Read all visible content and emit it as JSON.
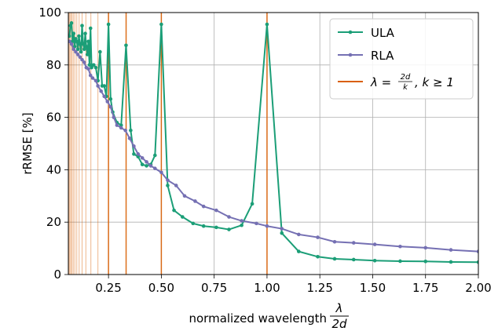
{
  "chart_data": {
    "type": "line",
    "xlabel": "normalized wavelength",
    "xlabel_fraction": {
      "numerator": "λ",
      "denominator": "2d"
    },
    "ylabel": "rRMSE [%]",
    "xlim": [
      0.06,
      2.0
    ],
    "ylim": [
      0,
      100
    ],
    "xticks": [
      "0.25",
      "0.50",
      "0.75",
      "1.00",
      "1.25",
      "1.50",
      "1.75",
      "2.00"
    ],
    "yticks": [
      "0",
      "20",
      "40",
      "60",
      "80",
      "100"
    ],
    "grid": true,
    "legend_position": "top-right",
    "legend": {
      "ula": "ULA",
      "rla": "RLA",
      "vline_prefix": "λ = ",
      "vline_frac_num": "2d",
      "vline_frac_den": "k",
      "vline_suffix": ", k ≥ 1"
    },
    "series": [
      {
        "name": "ULA",
        "color": "#1b9e77",
        "points": [
          [
            0.065,
            91
          ],
          [
            0.07,
            95
          ],
          [
            0.075,
            96
          ],
          [
            0.08,
            89
          ],
          [
            0.085,
            92
          ],
          [
            0.09,
            87
          ],
          [
            0.095,
            90
          ],
          [
            0.1,
            89
          ],
          [
            0.105,
            86
          ],
          [
            0.11,
            91
          ],
          [
            0.115,
            88
          ],
          [
            0.12,
            85
          ],
          [
            0.125,
            95
          ],
          [
            0.13,
            88
          ],
          [
            0.135,
            86
          ],
          [
            0.14,
            92
          ],
          [
            0.145,
            87
          ],
          [
            0.15,
            84
          ],
          [
            0.155,
            89
          ],
          [
            0.16,
            80
          ],
          [
            0.165,
            94
          ],
          [
            0.17,
            79
          ],
          [
            0.18,
            80
          ],
          [
            0.19,
            79
          ],
          [
            0.2,
            74
          ],
          [
            0.21,
            85
          ],
          [
            0.22,
            72
          ],
          [
            0.23,
            72
          ],
          [
            0.24,
            68
          ],
          [
            0.25,
            95.5
          ],
          [
            0.26,
            67
          ],
          [
            0.27,
            62
          ],
          [
            0.29,
            58
          ],
          [
            0.31,
            57
          ],
          [
            0.333,
            87.5
          ],
          [
            0.355,
            55
          ],
          [
            0.37,
            46
          ],
          [
            0.39,
            45
          ],
          [
            0.41,
            42
          ],
          [
            0.43,
            41.5
          ],
          [
            0.45,
            42
          ],
          [
            0.47,
            45.5
          ],
          [
            0.5,
            95.5
          ],
          [
            0.53,
            34
          ],
          [
            0.56,
            24.5
          ],
          [
            0.6,
            22
          ],
          [
            0.65,
            19.5
          ],
          [
            0.7,
            18.5
          ],
          [
            0.76,
            18
          ],
          [
            0.82,
            17.2
          ],
          [
            0.88,
            18.8
          ],
          [
            0.93,
            27
          ],
          [
            1.0,
            95.5
          ],
          [
            1.07,
            15.8
          ],
          [
            1.15,
            8.8
          ],
          [
            1.24,
            6.8
          ],
          [
            1.32,
            6.0
          ],
          [
            1.41,
            5.7
          ],
          [
            1.51,
            5.3
          ],
          [
            1.63,
            5.1
          ],
          [
            1.75,
            5.0
          ],
          [
            1.87,
            4.8
          ],
          [
            2.0,
            4.7
          ]
        ]
      },
      {
        "name": "RLA",
        "color": "#7570b3",
        "points": [
          [
            0.065,
            89
          ],
          [
            0.075,
            88
          ],
          [
            0.085,
            86
          ],
          [
            0.095,
            85
          ],
          [
            0.105,
            84
          ],
          [
            0.115,
            83
          ],
          [
            0.125,
            82
          ],
          [
            0.135,
            81
          ],
          [
            0.145,
            79
          ],
          [
            0.155,
            78.5
          ],
          [
            0.165,
            76
          ],
          [
            0.175,
            75
          ],
          [
            0.19,
            74
          ],
          [
            0.2,
            72
          ],
          [
            0.215,
            70
          ],
          [
            0.23,
            68
          ],
          [
            0.245,
            66
          ],
          [
            0.26,
            64
          ],
          [
            0.275,
            60
          ],
          [
            0.29,
            57
          ],
          [
            0.31,
            56
          ],
          [
            0.33,
            55
          ],
          [
            0.35,
            52
          ],
          [
            0.37,
            49
          ],
          [
            0.39,
            46
          ],
          [
            0.41,
            44.5
          ],
          [
            0.43,
            43
          ],
          [
            0.45,
            41.5
          ],
          [
            0.47,
            40.5
          ],
          [
            0.5,
            39
          ],
          [
            0.53,
            36
          ],
          [
            0.57,
            34
          ],
          [
            0.61,
            30
          ],
          [
            0.66,
            28
          ],
          [
            0.7,
            26
          ],
          [
            0.76,
            24.5
          ],
          [
            0.82,
            22
          ],
          [
            0.88,
            20.5
          ],
          [
            0.95,
            19.5
          ],
          [
            1.0,
            18.5
          ],
          [
            1.07,
            17.5
          ],
          [
            1.15,
            15.3
          ],
          [
            1.24,
            14.2
          ],
          [
            1.32,
            12.5
          ],
          [
            1.41,
            12.1
          ],
          [
            1.51,
            11.5
          ],
          [
            1.63,
            10.7
          ],
          [
            1.75,
            10.2
          ],
          [
            1.87,
            9.4
          ],
          [
            2.0,
            8.8
          ]
        ]
      }
    ],
    "vlines": {
      "name": "λ = 2d/k, k ≥ 1",
      "color": "#d95f02",
      "k": [
        1,
        2,
        3,
        4,
        5,
        6,
        7,
        8,
        9,
        10,
        11,
        12,
        13,
        14,
        15,
        16
      ]
    }
  }
}
